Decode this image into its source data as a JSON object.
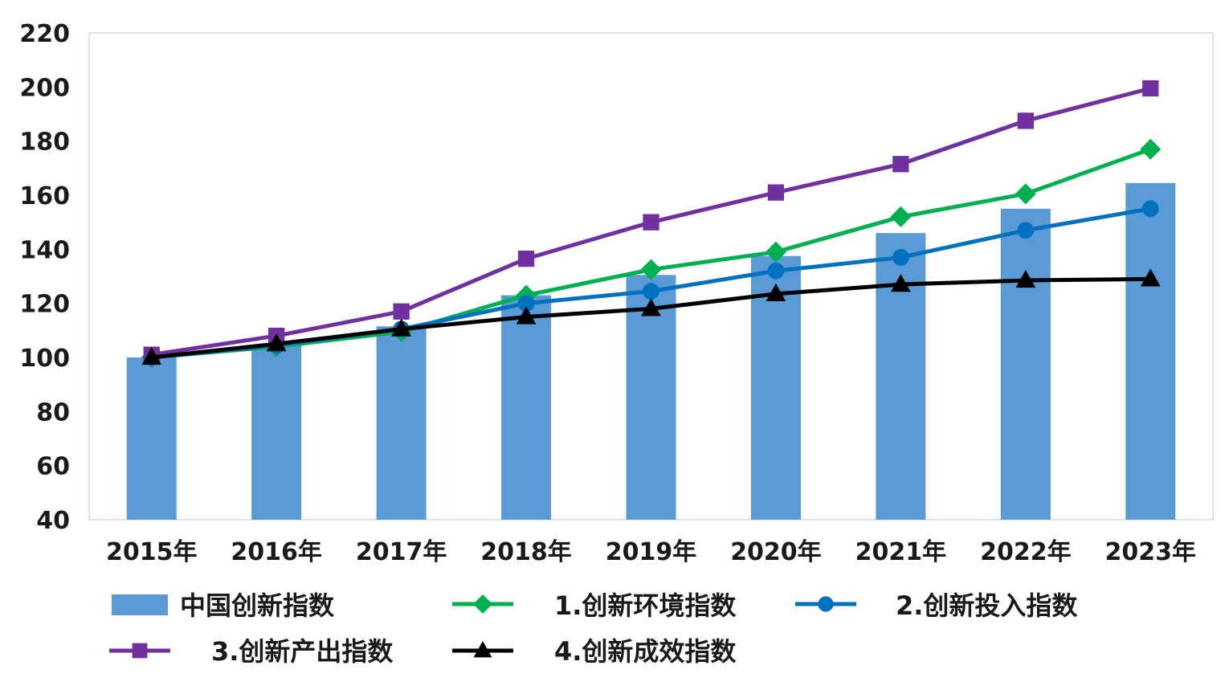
{
  "chart_data": {
    "type": "bar",
    "categories": [
      "2015年",
      "2016年",
      "2017年",
      "2018年",
      "2019年",
      "2020年",
      "2021年",
      "2022年",
      "2023年"
    ],
    "ylim": [
      40,
      220
    ],
    "yticks": [
      40,
      60,
      80,
      100,
      120,
      140,
      160,
      180,
      200,
      220
    ],
    "grid": false,
    "legend_position": "bottom",
    "bar_series": {
      "name": "中国创新指数",
      "color": "#5b9bd5",
      "values": [
        100,
        104.5,
        111.5,
        123,
        130.5,
        137.5,
        146,
        155,
        164.5
      ]
    },
    "line_series": [
      {
        "name": "1.创新环境指数",
        "color": "#00b050",
        "marker": "diamond",
        "values": [
          100,
          104,
          109.5,
          123,
          132.5,
          139,
          152,
          160.5,
          177
        ]
      },
      {
        "name": "2.创新投入指数",
        "color": "#0070c0",
        "marker": "circle",
        "values": [
          100,
          104.5,
          110.5,
          120,
          124.5,
          132,
          137,
          147,
          155
        ]
      },
      {
        "name": "3.创新产出指数",
        "color": "#7030a0",
        "marker": "square",
        "values": [
          101,
          108,
          117,
          136.5,
          150,
          161,
          171.5,
          187.5,
          199.5
        ]
      },
      {
        "name": "4.创新成效指数",
        "color": "#000000",
        "marker": "triangle",
        "values": [
          100,
          105,
          110.5,
          115,
          118,
          123.5,
          127,
          128.5,
          129
        ]
      }
    ]
  }
}
